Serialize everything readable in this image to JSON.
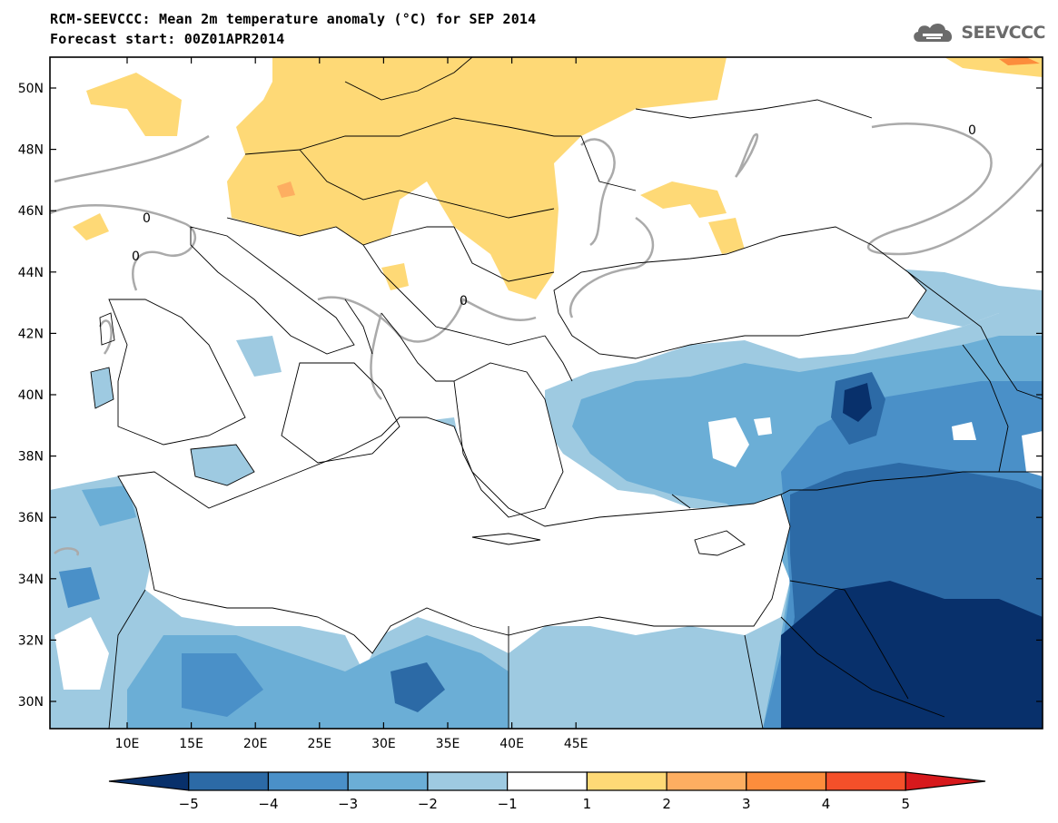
{
  "title": {
    "line1": "RCM-SEEVCCC: Mean 2m temperature anomaly (°C) for SEP 2014",
    "line2": "Forecast start: 00Z01APR2014"
  },
  "logo": {
    "text": "SEEVCCC",
    "icon": "cloud-logo-icon",
    "color": "#6b6b6b"
  },
  "map": {
    "lon_ticks": [
      "10E",
      "15E",
      "20E",
      "25E",
      "30E",
      "35E",
      "40E",
      "45E"
    ],
    "lat_ticks": [
      "50N",
      "48N",
      "46N",
      "44N",
      "42N",
      "40N",
      "38N",
      "36N",
      "34N",
      "32N",
      "30N"
    ],
    "contour_label": "0"
  },
  "colorbar": {
    "labels": [
      "−5",
      "−4",
      "−3",
      "−2",
      "−1",
      "1",
      "2",
      "3",
      "4",
      "5"
    ],
    "colors": [
      "#08306b",
      "#2c6aa6",
      "#4a90c8",
      "#6baed6",
      "#9ecae1",
      "#ffffff",
      "#fed976",
      "#fdae61",
      "#fc8d3c",
      "#f4502a",
      "#d7191c"
    ]
  },
  "palette": {
    "warm1": "#fed976",
    "warm2": "#fdae61",
    "warm3": "#f46d43",
    "cool1": "#9ecae1",
    "cool2": "#6baed6",
    "cool3": "#4a90c8",
    "cool4": "#2c6aa6",
    "cool5": "#08306b",
    "contour": "#aaaaaa"
  }
}
